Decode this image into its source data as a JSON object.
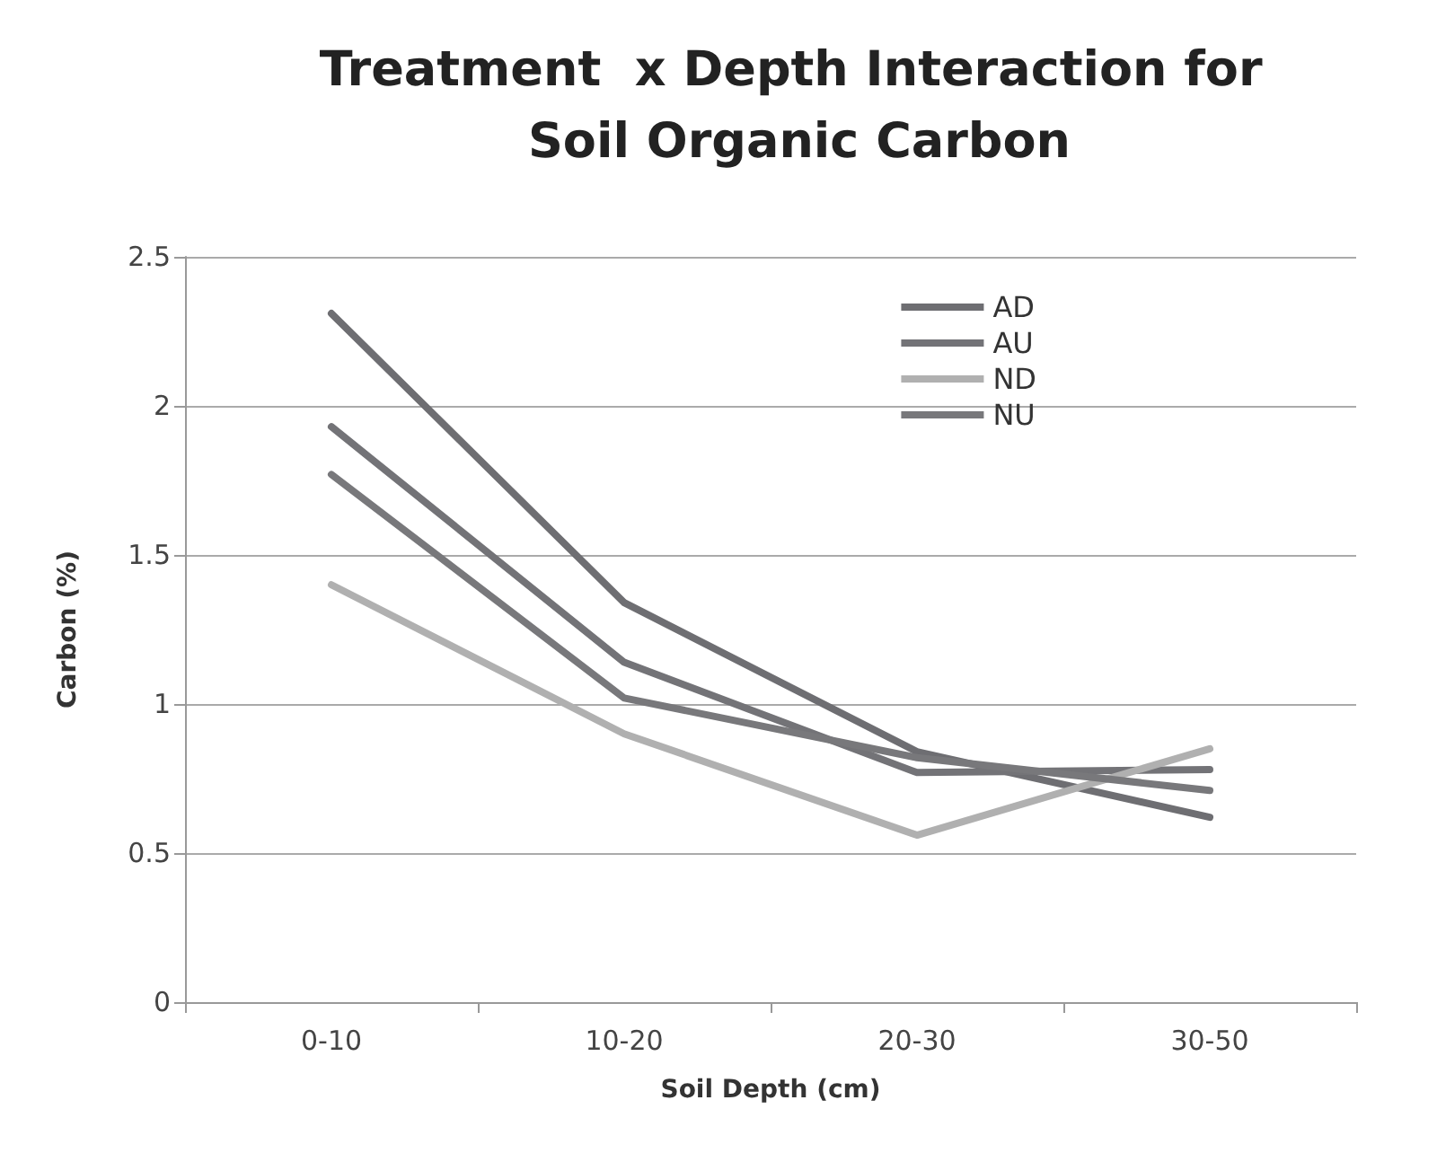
{
  "chart_data": {
    "type": "line",
    "title": "Treatment  x Depth Interaction for Soil Organic Carbon",
    "xlabel": "Soil Depth (cm)",
    "ylabel": "Carbon (%)",
    "categories": [
      "0-10",
      "10-20",
      "20-30",
      "30-50"
    ],
    "series": [
      {
        "name": "AD",
        "color": "#6e6e72",
        "values": [
          2.31,
          1.34,
          0.84,
          0.62
        ]
      },
      {
        "name": "AU",
        "color": "#737377",
        "values": [
          1.93,
          1.14,
          0.77,
          0.78
        ]
      },
      {
        "name": "ND",
        "color": "#b0b0b0",
        "values": [
          1.4,
          0.9,
          0.56,
          0.85
        ]
      },
      {
        "name": "NU",
        "color": "#78787b",
        "values": [
          1.77,
          1.02,
          0.82,
          0.71
        ]
      }
    ],
    "ylim": [
      0,
      2.5
    ],
    "yticks": [
      0,
      0.5,
      1,
      1.5,
      2,
      2.5
    ],
    "grid": "y",
    "legend": "top right",
    "marker": "none",
    "line_style": "solid"
  }
}
